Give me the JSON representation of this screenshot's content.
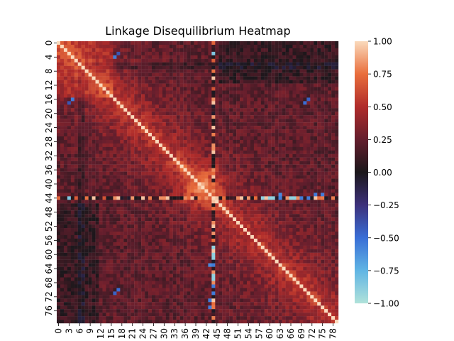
{
  "chart_data": {
    "type": "heatmap",
    "title": "Linkage Disequilibrium Heatmap",
    "xlabel": "",
    "ylabel": "",
    "n": 80,
    "x_tick_labels": [
      "0",
      "3",
      "6",
      "9",
      "12",
      "15",
      "18",
      "21",
      "24",
      "27",
      "30",
      "33",
      "36",
      "39",
      "42",
      "45",
      "48",
      "51",
      "54",
      "57",
      "60",
      "63",
      "66",
      "69",
      "72",
      "75",
      "78"
    ],
    "y_tick_labels": [
      "0",
      "4",
      "8",
      "12",
      "16",
      "20",
      "24",
      "28",
      "32",
      "36",
      "40",
      "44",
      "48",
      "52",
      "56",
      "60",
      "64",
      "68",
      "72",
      "76"
    ],
    "colorbar": {
      "vmin": -1.0,
      "vmax": 1.0,
      "tick_labels": [
        "1.00",
        "0.75",
        "0.50",
        "0.25",
        "0.00",
        "−0.25",
        "−0.50",
        "−0.75",
        "−1.00"
      ],
      "colormap": "icefire-like diverging"
    },
    "value_summary": {
      "diagonal": 1.0,
      "typical_off_diagonal_range": [
        0.05,
        0.6
      ],
      "high_correlation_block": [
        35,
        43
      ],
      "special_row_and_column": 44,
      "special_row_values_range": [
        -0.9,
        1.0
      ]
    },
    "legend": "colorbar-right",
    "grid": false
  }
}
